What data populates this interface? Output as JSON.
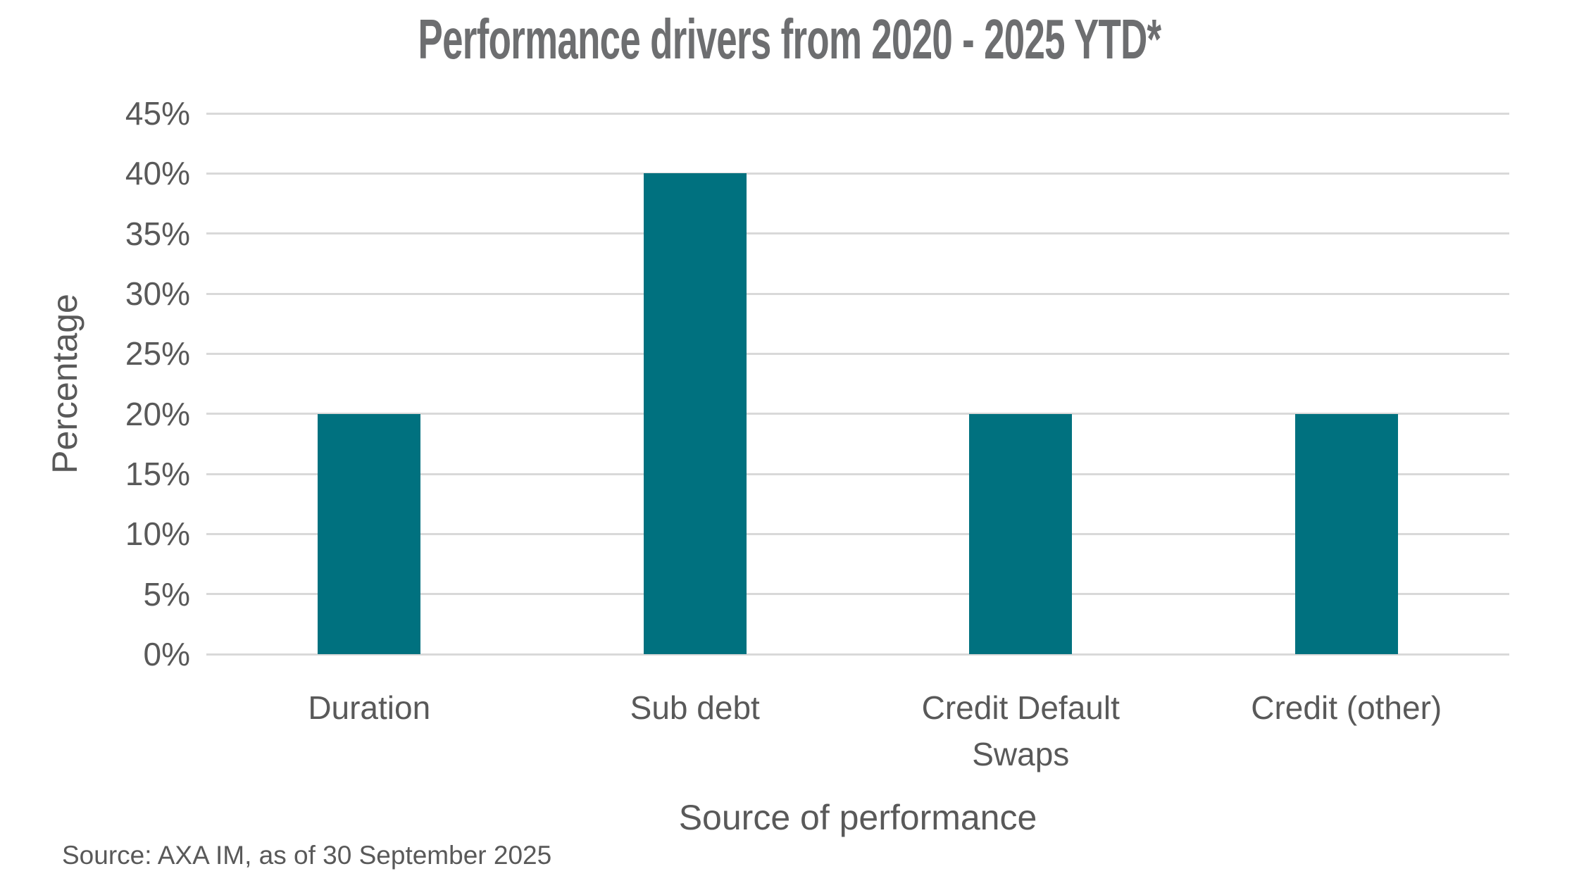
{
  "chart_data": {
    "type": "bar",
    "title": "Performance drivers from 2020 - 2025 YTD*",
    "categories": [
      "Duration",
      "Sub debt",
      "Credit Default Swaps",
      "Credit (other)"
    ],
    "values": [
      20,
      40,
      20,
      20
    ],
    "xlabel": "Source of performance",
    "ylabel": "Percentage",
    "ylim": [
      0,
      45
    ],
    "ytick_step": 5,
    "ytick_labels": [
      "0%",
      "5%",
      "10%",
      "15%",
      "20%",
      "25%",
      "30%",
      "35%",
      "40%",
      "45%"
    ],
    "grid": true,
    "legend": false,
    "colors": {
      "bar": "#00717F",
      "gridline": "#D9D9D9",
      "axis_text": "#595959",
      "title_text": "#6D6E70"
    }
  },
  "footer": {
    "source_note": "Source: AXA IM, as of 30 September 2025"
  }
}
